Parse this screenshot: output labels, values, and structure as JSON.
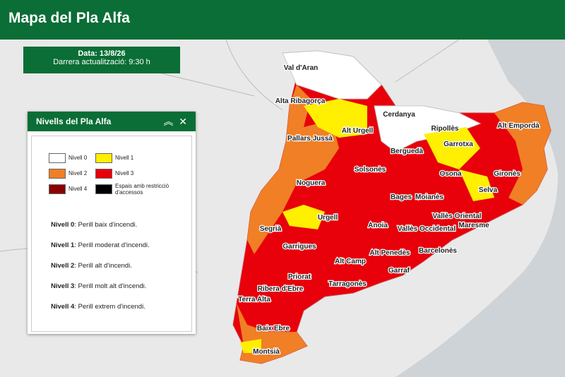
{
  "header": {
    "title": "Mapa del Pla Alfa"
  },
  "date_box": {
    "date": "Data: 13/8/26",
    "updated": "Darrera actualització: 9:30 h"
  },
  "legend": {
    "title": "Nivells del Pla Alfa",
    "items": [
      "Nivell 0",
      "Nivell 2",
      "Nivell 4",
      "Nivell 1",
      "Nivell 3",
      "Espais amb restricció d'accessos"
    ],
    "descriptions": [
      {
        "level": "Nivell 0",
        "text": ": Perill baix d'incendi."
      },
      {
        "level": "Nivell 1",
        "text": ": Perill moderat d'incendi."
      },
      {
        "level": "Nivell 2",
        "text": ": Perill alt d'incendi."
      },
      {
        "level": "Nivell 3",
        "text": ": Perill molt alt d'incendi."
      },
      {
        "level": "Nivell 4",
        "text": ": Perill extrem d'incendi."
      }
    ]
  },
  "map": {
    "labels": [
      "Val d'Aran",
      "Alta Ribagorça",
      "Cerdanya",
      "Ripollès",
      "Alt Urgell",
      "Pallars Jussà",
      "Berguedà",
      "Garrotxa",
      "Alt Empordà",
      "Solsonès",
      "Osona",
      "Gironès",
      "Noguera",
      "Bages",
      "Moianès",
      "Selva",
      "Segrià",
      "Urgell",
      "Anoia",
      "Vallès Oriental",
      "Maresme",
      "Vallès Occidental",
      "Garrigues",
      "Barcelonès",
      "Alt Camp",
      "Alt Penedès",
      "Garraf",
      "Priorat",
      "Tarragonès",
      "Ribera d'Ebre",
      "Terra Alta",
      "Baix Ebre",
      "Montsià"
    ]
  }
}
